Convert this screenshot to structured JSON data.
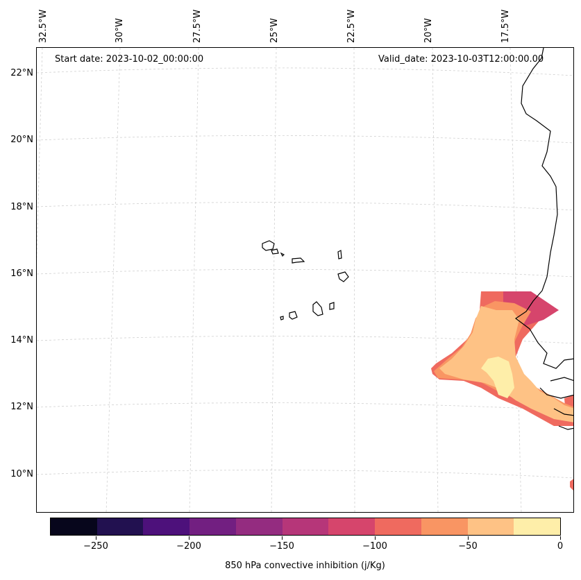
{
  "map": {
    "start_label": "Start date: 2023-10-02_00:00:00",
    "valid_label": "Valid_date: 2023-10-03T12:00:00.00",
    "lon_labels": [
      "32.5°W",
      "30°W",
      "27.5°W",
      "25°W",
      "22.5°W",
      "20°W",
      "17.5°W"
    ],
    "lat_labels": [
      "22°N",
      "20°N",
      "18°N",
      "16°N",
      "14°N",
      "12°N",
      "10°N"
    ]
  },
  "colorbar": {
    "title": "850 hPa convective inhibition (j/Kg)",
    "tick_labels": [
      "−250",
      "−200",
      "−150",
      "−100",
      "−50",
      "0"
    ],
    "colors": [
      "#07061c",
      "#221150",
      "#4d117b",
      "#721f81",
      "#942c80",
      "#b63679",
      "#d6456c",
      "#ef6a5f",
      "#f99563",
      "#fec285",
      "#feeea9"
    ]
  }
}
